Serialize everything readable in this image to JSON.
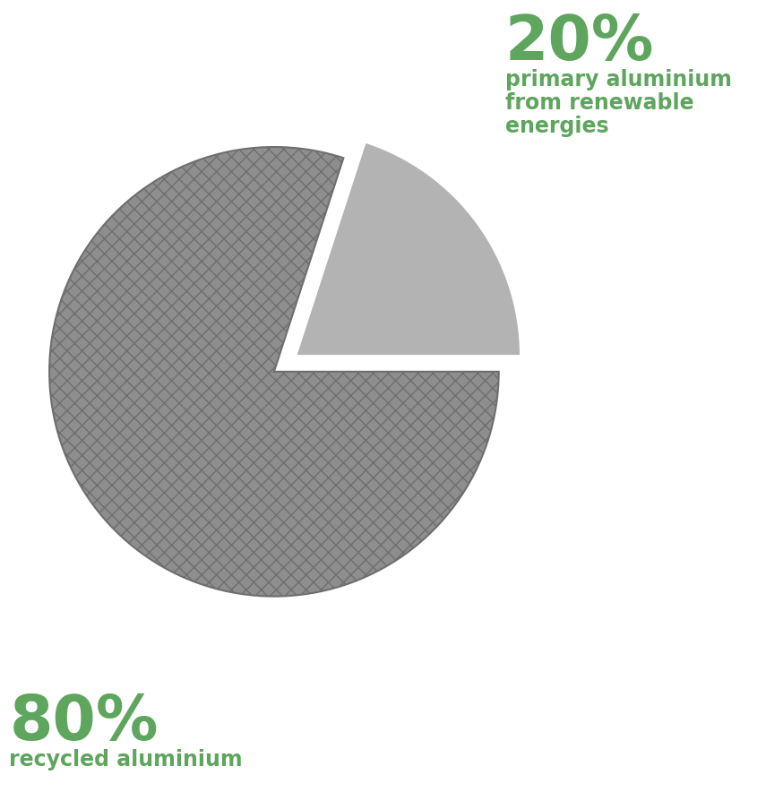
{
  "chart_data": {
    "type": "pie",
    "categories": [
      "recycled aluminium",
      "primary aluminium from renewable energies"
    ],
    "values": [
      80,
      20
    ],
    "value_labels": [
      "80%",
      "20%"
    ],
    "colors": [
      "#8e8e8e",
      "#b3b3b3"
    ]
  }
}
